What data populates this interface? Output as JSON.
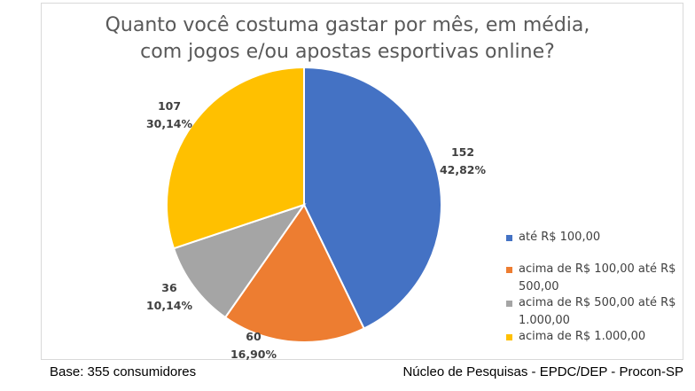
{
  "chart_data": {
    "type": "pie",
    "title_lines": [
      "Quanto você costuma gastar por mês, em média,",
      "com jogos e/ou apostas esportivas online?"
    ],
    "slices": [
      {
        "label": "até R$ 100,00",
        "value": 152,
        "percent": "42,82%",
        "color": "#4472c4"
      },
      {
        "label": "acima de R$ 100,00 até R$ 500,00",
        "value": 60,
        "percent": "16,90%",
        "color": "#ed7d31"
      },
      {
        "label": "acima de R$ 500,00 até R$ 1.000,00",
        "value": 36,
        "percent": "10,14%",
        "color": "#a5a5a5"
      },
      {
        "label": "acima de R$ 1.000,00",
        "value": 107,
        "percent": "30,14%",
        "color": "#ffc000"
      }
    ],
    "legend_position": "right"
  },
  "footer": {
    "base": "Base: 355 consumidores",
    "source": "Núcleo de Pesquisas - EPDC/DEP - Procon-SP"
  }
}
